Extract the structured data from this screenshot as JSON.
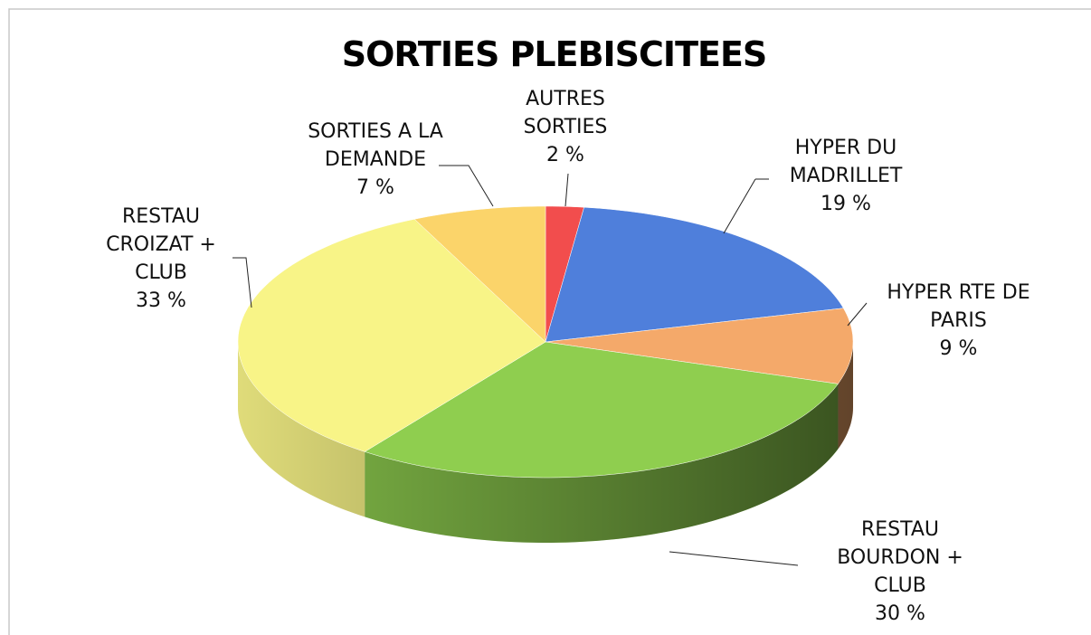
{
  "chart_data": {
    "type": "pie",
    "title": "SORTIES PLEBISCITEES",
    "categories": [
      "AUTRES SORTIES",
      "HYPER DU MADRILLET",
      "HYPER RTE DE PARIS",
      "RESTAU BOURDON + CLUB",
      "RESTAU CROIZAT + CLUB",
      "SORTIES A LA DEMANDE"
    ],
    "values": [
      2,
      19,
      9,
      30,
      33,
      7
    ],
    "value_labels": [
      "2 %",
      "19 %",
      "9 %",
      "30 %",
      "33 %",
      "7 %"
    ],
    "colors": [
      "#f24d4d",
      "#4f7fdb",
      "#f4a96a",
      "#8fce4f",
      "#f8f487",
      "#fbd46a"
    ]
  }
}
